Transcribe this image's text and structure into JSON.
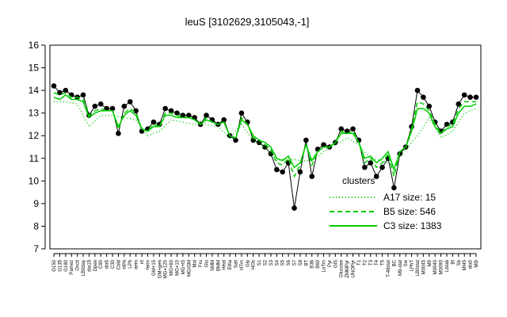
{
  "chart_data": {
    "type": "line",
    "title": "leuS [3102629,3105043,-1]",
    "xlabel": "",
    "ylabel": "",
    "ylim": [
      7,
      16
    ],
    "yticks": [
      7,
      8,
      9,
      10,
      11,
      12,
      13,
      14,
      15,
      16
    ],
    "grid": false,
    "legend": {
      "title": "clusters",
      "placement": "right",
      "entries": [
        {
          "label": "A17 size: 15",
          "style": "dotted",
          "color": "#00cc00"
        },
        {
          "label": "B5 size: 546",
          "style": "dashed",
          "color": "#00cc00"
        },
        {
          "label": "C3 size: 1383",
          "style": "solid",
          "color": "#00cc00"
        }
      ]
    },
    "x_tick_labels": [
      "G150",
      "G135",
      "G180",
      "Pamez",
      "Oxctl",
      "LB0day",
      "dia15",
      "Dpen",
      "C90",
      "dia5",
      "C30",
      "Cold",
      "HPh",
      "LPh",
      "aero",
      "nt",
      "ferm",
      "GM+15",
      "GM+gen",
      "MG+120",
      "MG+60",
      "MG+10",
      "MG+t5",
      "MG/GM",
      "Mal",
      "Fru",
      "Glu",
      "SMM",
      "BMM",
      "Heat",
      "Etha",
      "Salt",
      "HTm",
      "Gly",
      "HOs",
      "S1",
      "S2",
      "S3",
      "S4",
      "S5",
      "S6",
      "S7",
      "S8",
      "BT",
      "B36",
      "B60",
      "LoTm",
      "Pyr",
      "GlS",
      "Glucose",
      "ZMMPyr",
      "UNOPyr",
      "T1",
      "T2",
      "T3",
      "T4",
      "T5",
      "T-48stat",
      "BC",
      "M9-stat",
      "Sw",
      "LPhT",
      "LB0stat",
      "M0045",
      "M9",
      "M0040",
      "M0090",
      "Lbtab",
      "BI",
      "Sb",
      "Mt45",
      "dia0",
      "Ml9"
    ],
    "series": [
      {
        "name": "",
        "style": "markers",
        "color": "#000000",
        "x": [
          0,
          1,
          2,
          3,
          4,
          5,
          6,
          7,
          8,
          9,
          10,
          11,
          12,
          13,
          14,
          15,
          16,
          17,
          18,
          19,
          20,
          21,
          22,
          23,
          24,
          25,
          26,
          27,
          28,
          29,
          30,
          31,
          32,
          33,
          34,
          35,
          36,
          37,
          38,
          39,
          40,
          41,
          42,
          43,
          44,
          45,
          46,
          47,
          48,
          49,
          50,
          51,
          52,
          53,
          54,
          55,
          56,
          57,
          58,
          59,
          60,
          61,
          62,
          63,
          64,
          65,
          66,
          67,
          68,
          69,
          70,
          71,
          72
        ],
        "y": [
          14.2,
          13.9,
          14.0,
          13.8,
          13.7,
          13.8,
          12.9,
          13.3,
          13.4,
          13.2,
          13.2,
          12.1,
          13.3,
          13.5,
          13.1,
          12.2,
          12.3,
          12.6,
          12.5,
          13.2,
          13.1,
          13.0,
          12.9,
          12.9,
          12.8,
          12.5,
          12.9,
          12.7,
          12.5,
          12.7,
          12.0,
          11.8,
          13.0,
          12.6,
          11.8,
          11.7,
          11.5,
          11.2,
          10.5,
          10.4,
          10.8,
          8.8,
          10.4,
          11.8,
          10.2,
          11.4,
          11.6,
          11.5,
          11.7,
          12.3,
          12.2,
          12.3,
          11.8,
          10.6,
          10.8,
          10.2,
          10.6,
          11.0,
          9.7,
          11.2,
          11.5,
          12.4,
          14.0,
          13.7,
          13.3,
          12.6,
          12.2,
          12.5,
          12.6,
          13.4,
          13.8,
          13.7,
          13.7
        ]
      },
      {
        "name": "",
        "style": "solid",
        "color": "#00cc00",
        "x": [
          0,
          1,
          2,
          3,
          4,
          5,
          6,
          7,
          8,
          9,
          10,
          11,
          12,
          13,
          14,
          15,
          16,
          17,
          18,
          19,
          20,
          21,
          22,
          23,
          24,
          25,
          26,
          27,
          28,
          29,
          30,
          31,
          32,
          33,
          34,
          35,
          36,
          37,
          38,
          39,
          40,
          41,
          42,
          43,
          44,
          45,
          46,
          47,
          48,
          49,
          50,
          51,
          52,
          53,
          54,
          55,
          56,
          57,
          58,
          59,
          60,
          61,
          62,
          63,
          64,
          65,
          66,
          67,
          68,
          69,
          70,
          71,
          72
        ],
        "y": [
          13.7,
          13.6,
          13.8,
          13.6,
          13.6,
          13.5,
          12.8,
          13.0,
          13.1,
          13.1,
          13.1,
          12.4,
          12.9,
          13.1,
          12.9,
          12.3,
          12.2,
          12.4,
          12.4,
          12.9,
          12.9,
          12.8,
          12.8,
          12.8,
          12.7,
          12.5,
          12.7,
          12.6,
          12.5,
          12.6,
          12.0,
          11.9,
          12.7,
          12.5,
          12.0,
          11.8,
          11.7,
          11.5,
          11.0,
          10.9,
          11.1,
          10.6,
          10.8,
          11.6,
          10.9,
          11.3,
          11.5,
          11.5,
          11.7,
          12.1,
          12.1,
          12.1,
          11.7,
          11.0,
          11.1,
          10.8,
          11.0,
          11.3,
          10.5,
          11.3,
          11.5,
          12.2,
          13.2,
          13.2,
          13.0,
          12.4,
          12.1,
          12.3,
          12.4,
          13.0,
          13.3,
          13.3,
          13.4
        ]
      },
      {
        "name": "",
        "style": "dashed",
        "color": "#00cc00",
        "x": [
          0,
          1,
          2,
          3,
          4,
          5,
          6,
          7,
          8,
          9,
          10,
          11,
          12,
          13,
          14,
          15,
          16,
          17,
          18,
          19,
          20,
          21,
          22,
          23,
          24,
          25,
          26,
          27,
          28,
          29,
          30,
          31,
          32,
          33,
          34,
          35,
          36,
          37,
          38,
          39,
          40,
          41,
          42,
          43,
          44,
          45,
          46,
          47,
          48,
          49,
          50,
          51,
          52,
          53,
          54,
          55,
          56,
          57,
          58,
          59,
          60,
          61,
          62,
          63,
          64,
          65,
          66,
          67,
          68,
          69,
          70,
          71,
          72
        ],
        "y": [
          13.9,
          13.8,
          13.9,
          13.7,
          13.7,
          13.6,
          12.9,
          13.1,
          13.2,
          13.1,
          13.1,
          12.3,
          13.0,
          13.2,
          13.0,
          12.3,
          12.2,
          12.5,
          12.4,
          13.0,
          13.0,
          12.9,
          12.8,
          12.8,
          12.7,
          12.5,
          12.8,
          12.6,
          12.5,
          12.6,
          12.0,
          11.9,
          12.8,
          12.5,
          11.9,
          11.8,
          11.6,
          11.4,
          10.8,
          10.7,
          11.0,
          10.2,
          10.7,
          11.6,
          10.7,
          11.3,
          11.5,
          11.5,
          11.7,
          12.2,
          12.1,
          12.2,
          11.7,
          10.8,
          11.0,
          10.6,
          10.8,
          11.2,
          10.2,
          11.3,
          11.5,
          12.3,
          13.5,
          13.4,
          13.1,
          12.5,
          12.1,
          12.4,
          12.5,
          13.2,
          13.5,
          13.5,
          13.5
        ]
      },
      {
        "name": "",
        "style": "dotted",
        "color": "#00cc00",
        "x": [
          0,
          2,
          4,
          6,
          8,
          10,
          12,
          14,
          16,
          18,
          20,
          22,
          24,
          26,
          28,
          30,
          32,
          34,
          36,
          38,
          40,
          42,
          44,
          46,
          48,
          50,
          52,
          54,
          56,
          58,
          60,
          62,
          64,
          66,
          68,
          70,
          72
        ],
        "y": [
          13.5,
          13.5,
          13.4,
          12.4,
          12.9,
          12.9,
          12.8,
          12.7,
          12.0,
          12.2,
          12.7,
          12.6,
          12.5,
          12.5,
          12.4,
          11.9,
          12.5,
          11.8,
          11.5,
          10.9,
          11.0,
          10.9,
          10.9,
          11.3,
          11.6,
          11.9,
          11.6,
          11.0,
          10.9,
          10.7,
          11.4,
          12.0,
          12.8,
          11.9,
          12.2,
          13.0,
          13.2
        ]
      }
    ]
  }
}
